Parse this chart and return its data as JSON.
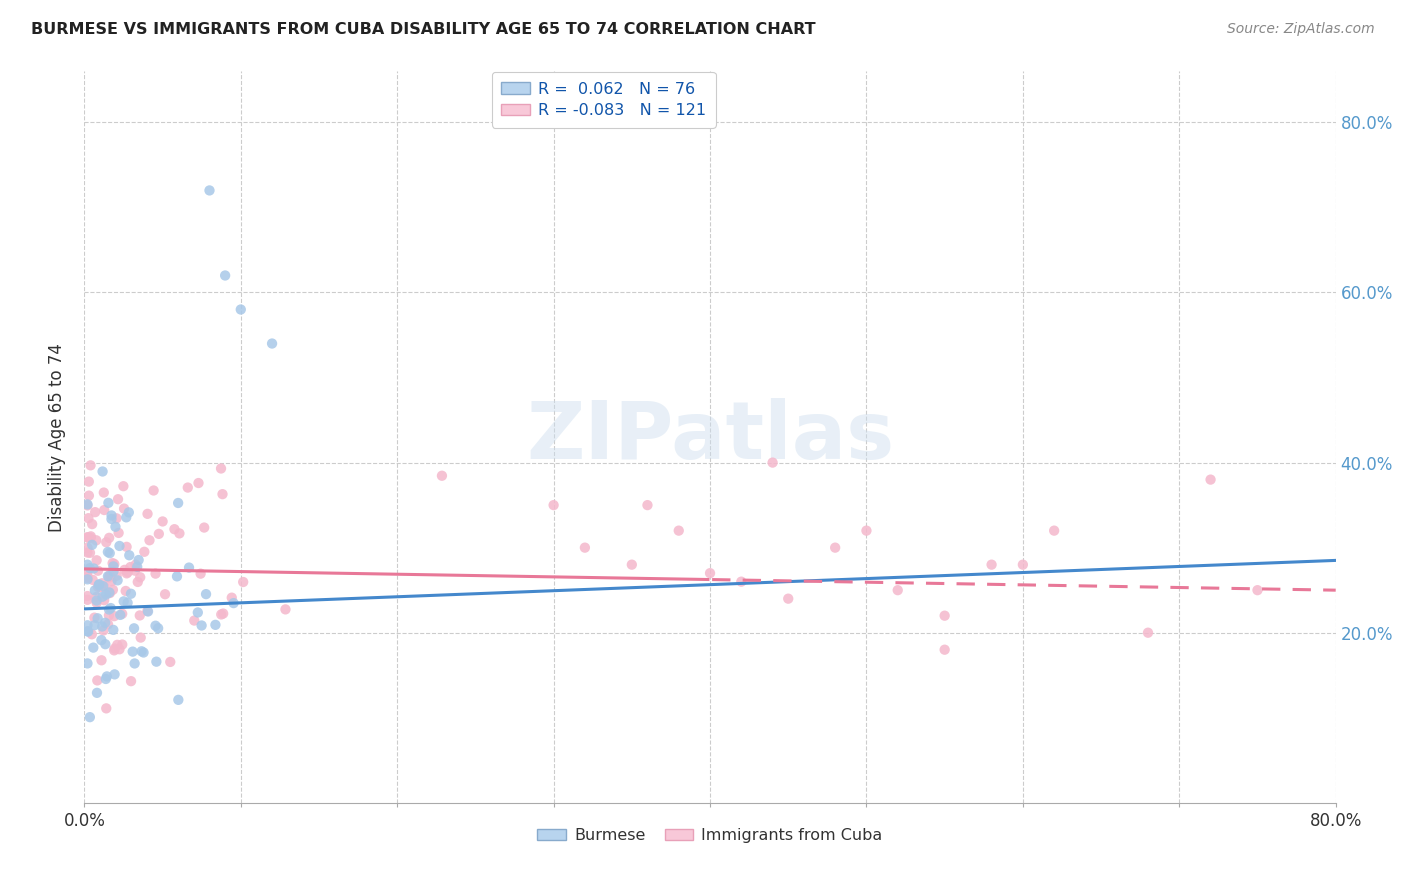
{
  "title": "BURMESE VS IMMIGRANTS FROM CUBA DISABILITY AGE 65 TO 74 CORRELATION CHART",
  "source": "Source: ZipAtlas.com",
  "ylabel": "Disability Age 65 to 74",
  "legend_label1": "Burmese",
  "legend_label2": "Immigrants from Cuba",
  "r1": 0.062,
  "n1": 76,
  "r2": -0.083,
  "n2": 121,
  "blue_color": "#a8c8e8",
  "pink_color": "#f4b8cc",
  "blue_line_color": "#4488cc",
  "pink_line_color": "#e87898",
  "background_color": "#ffffff",
  "grid_color": "#cccccc",
  "watermark": "ZIPatlas",
  "xlim": [
    0.0,
    0.8
  ],
  "ylim": [
    0.0,
    0.86
  ],
  "yticks": [
    0.2,
    0.4,
    0.6,
    0.8
  ],
  "xtick_positions": [
    0.0,
    0.1,
    0.2,
    0.3,
    0.4,
    0.5,
    0.6,
    0.7,
    0.8
  ]
}
